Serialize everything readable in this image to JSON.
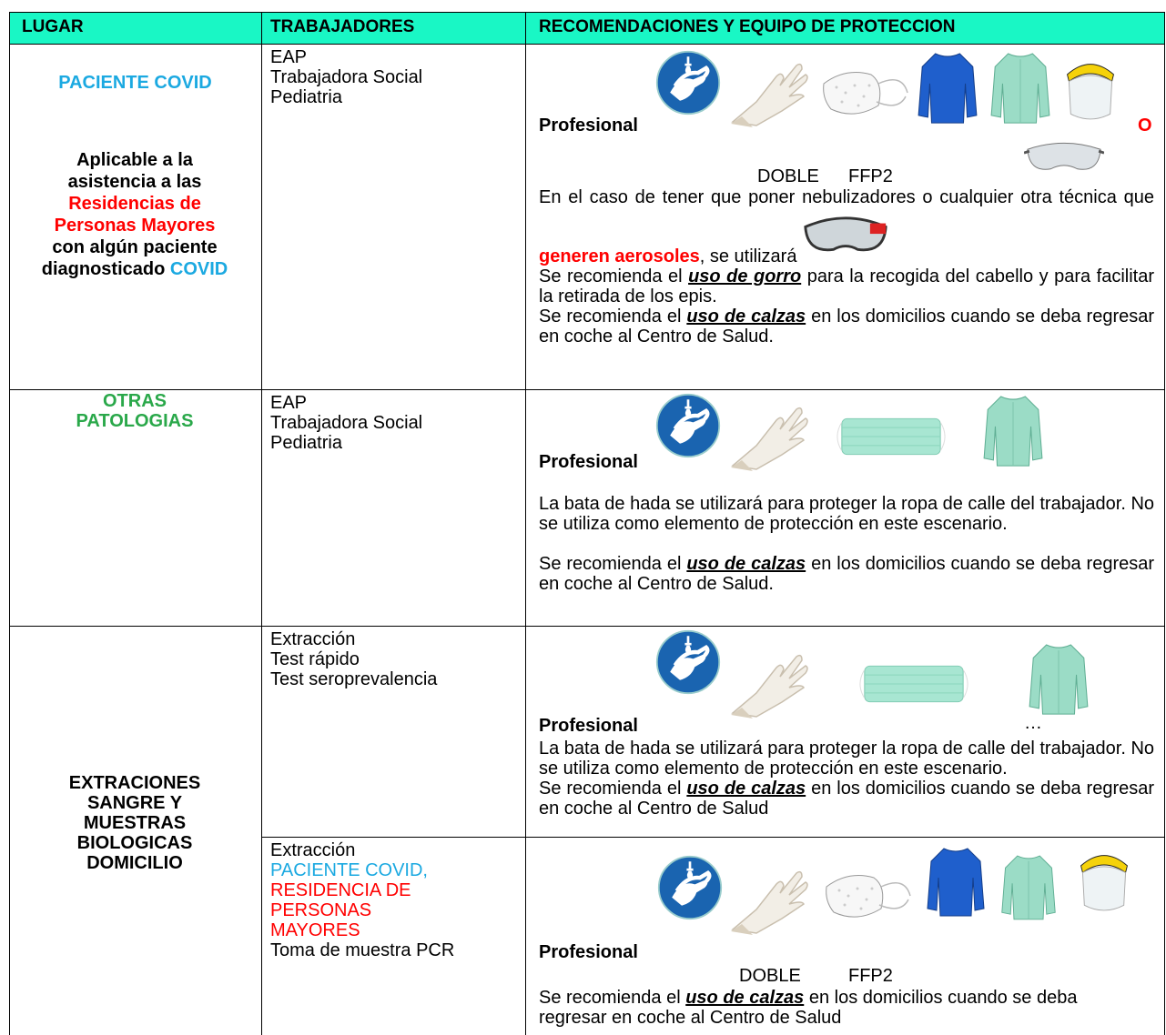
{
  "header": {
    "lugar": "LUGAR",
    "trabajadores": "TRABAJADORES",
    "recomendaciones": "RECOMENDACIONES Y EQUIPO DE PROTECCION"
  },
  "rows": [
    {
      "lugar": [
        "PACIENTE COVID",
        "Aplicable a la asistencia a las",
        "Residencias de Personas Mayores",
        "con algún paciente diagnosticado",
        "COVID"
      ],
      "trabajadores": [
        "EAP",
        "Trabajadora Social",
        "Pediatria"
      ],
      "profesional": "Profesional",
      "alternative": "O",
      "labels": [
        "DOBLE",
        "FFP2"
      ],
      "paragraphs": [
        [
          "En el caso de tener que poner nebulizadores o cualquier otra técnica que ",
          "generen aerosoles",
          ", se utilizará"
        ],
        [
          "Se recomienda el ",
          "uso de gorro",
          " para la recogida del cabello y para facilitar la retirada de los epis."
        ],
        [
          "Se recomienda el ",
          "uso de calzas",
          " en los domicilios cuando se deba regresar en coche al Centro de Salud."
        ]
      ]
    },
    {
      "lugar": [
        "OTRAS PATOLOGIAS"
      ],
      "trabajadores": [
        "EAP",
        "Trabajadora Social",
        "Pediatria"
      ],
      "profesional": "Profesional",
      "paragraphs": [
        [
          "La bata de hada se utilizará para proteger la ropa de calle del trabajador. No se utiliza como elemento de protección en este escenario."
        ],
        [
          "Se recomienda el ",
          "uso de calzas",
          " en los domicilios cuando se deba regresar en coche al Centro de Salud."
        ]
      ]
    },
    {
      "lugar": [
        "EXTRACIONES SANGRE Y MUESTRAS BIOLOGICAS DOMICILIO"
      ],
      "subrows": [
        {
          "trabajadores": [
            "Extracción",
            "Test rápido",
            "Test seroprevalencia"
          ],
          "profesional": "Profesional",
          "ellipsis": "…",
          "paragraphs": [
            [
              "La bata de hada se utilizará para proteger la ropa de calle del trabajador. No se utiliza como elemento de protección en este escenario."
            ],
            [
              "Se recomienda el ",
              "uso de calzas",
              " en los domicilios cuando se deba regresar en coche al Centro de Salud"
            ]
          ]
        },
        {
          "trabajadores": [
            "Extracción",
            "PACIENTE COVID,",
            "RESIDENCIA DE PERSONAS MAYORES",
            "Toma de muestra PCR"
          ],
          "profesional": "Profesional",
          "labels": [
            "DOBLE",
            "FFP2"
          ],
          "paragraphs": [
            [
              "Se recomienda el ",
              "uso de calzas",
              " en los domicilios cuando se deba regresar en coche al Centro de Salud"
            ]
          ]
        }
      ]
    }
  ]
}
